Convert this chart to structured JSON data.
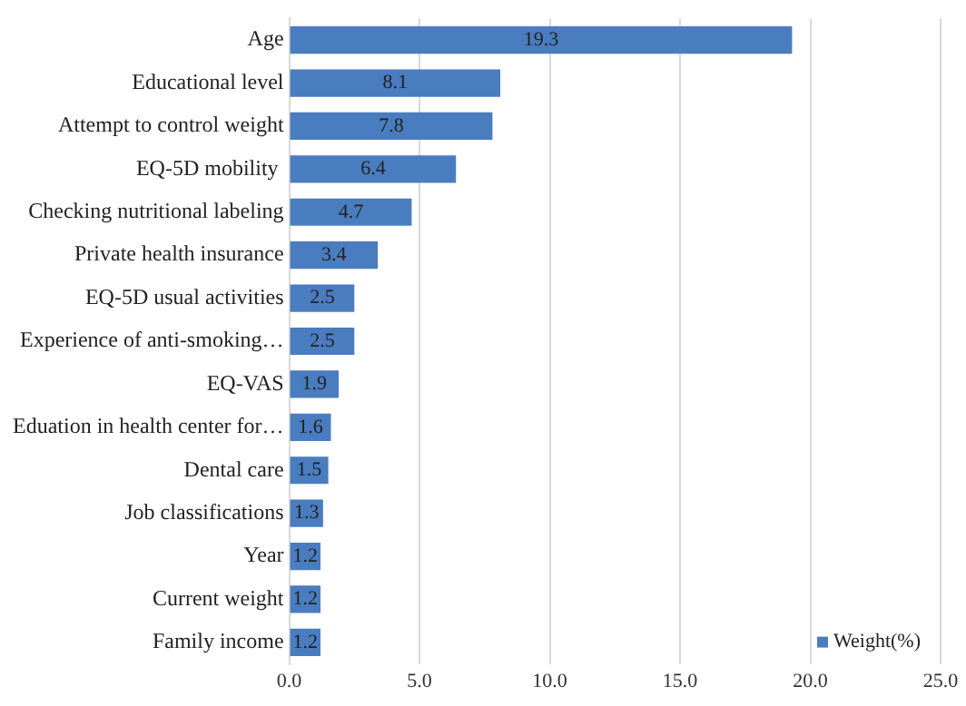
{
  "chart_data": {
    "type": "bar",
    "orientation": "horizontal",
    "categories": [
      "Age",
      "Educational level",
      "Attempt to control weight",
      "EQ-5D mobility ",
      "Checking nutritional labeling",
      "Private health insurance",
      "EQ-5D usual activities",
      "Experience of anti-smoking…",
      "EQ-VAS",
      "Eduation in health center for…",
      "Dental care",
      "Job classifications",
      "Year",
      "Current weight",
      "Family income"
    ],
    "series": [
      {
        "name": "Weight(%)",
        "color": "#4a7cc0",
        "values": [
          19.3,
          8.1,
          7.8,
          6.4,
          4.7,
          3.4,
          2.5,
          2.5,
          1.9,
          1.6,
          1.5,
          1.3,
          1.2,
          1.2,
          1.2
        ]
      }
    ],
    "xlim": [
      0,
      25
    ],
    "xticks": [
      {
        "value": 0,
        "label": "0.0"
      },
      {
        "value": 5,
        "label": "5.0"
      },
      {
        "value": 10,
        "label": "10.0"
      },
      {
        "value": 15,
        "label": "15.0"
      },
      {
        "value": 20,
        "label": "20.0"
      },
      {
        "value": 25,
        "label": "25.0"
      }
    ],
    "grid": "x",
    "legend": "bottom right",
    "data_labels": true
  }
}
